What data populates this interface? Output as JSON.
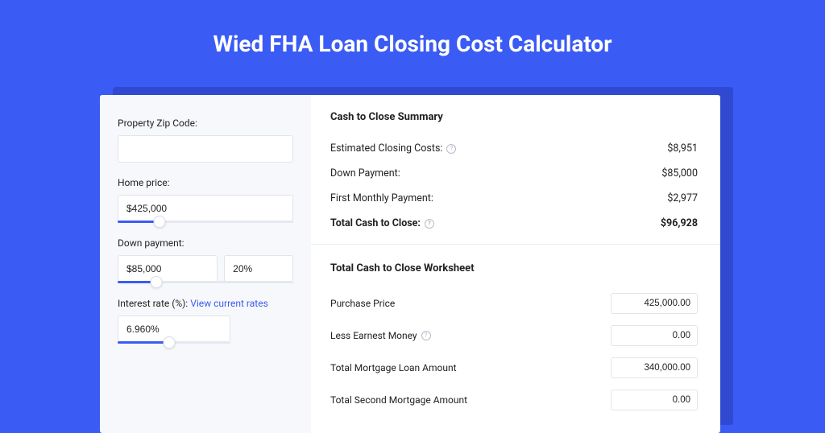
{
  "colors": {
    "page_bg": "#3b5bf5",
    "card_bg": "#ffffff",
    "shadow_bg": "#2f49d1",
    "left_pane_bg": "#f7f8fb",
    "input_border": "#e2e4ea",
    "slider_track": "#e6e8ef",
    "slider_fill": "#3b5bf5",
    "link": "#3b5bf5",
    "text": "#222222",
    "divider": "#eceef3",
    "help_icon_border": "#b8bcc8"
  },
  "title": "Wied FHA Loan Closing Cost Calculator",
  "form": {
    "zip": {
      "label": "Property Zip Code:",
      "value": ""
    },
    "home_price": {
      "label": "Home price:",
      "value": "$425,000",
      "slider_pct": 24
    },
    "down_payment": {
      "label": "Down payment:",
      "value": "$85,000",
      "pct_value": "20%",
      "slider_pct": 22
    },
    "interest": {
      "label": "Interest rate (%): ",
      "link_text": "View current rates",
      "value": "6.960%",
      "slider_pct": 46
    }
  },
  "summary": {
    "title": "Cash to Close Summary",
    "rows": [
      {
        "label": "Estimated Closing Costs:",
        "value": "$8,951",
        "help": true,
        "bold": false
      },
      {
        "label": "Down Payment:",
        "value": "$85,000",
        "help": false,
        "bold": false
      },
      {
        "label": "First Monthly Payment:",
        "value": "$2,977",
        "help": false,
        "bold": false
      },
      {
        "label": "Total Cash to Close:",
        "value": "$96,928",
        "help": true,
        "bold": true
      }
    ]
  },
  "worksheet": {
    "title": "Total Cash to Close Worksheet",
    "rows": [
      {
        "label": "Purchase Price",
        "value": "425,000.00",
        "help": false
      },
      {
        "label": "Less Earnest Money",
        "value": "0.00",
        "help": true
      },
      {
        "label": "Total Mortgage Loan Amount",
        "value": "340,000.00",
        "help": false
      },
      {
        "label": "Total Second Mortgage Amount",
        "value": "0.00",
        "help": false
      }
    ]
  }
}
